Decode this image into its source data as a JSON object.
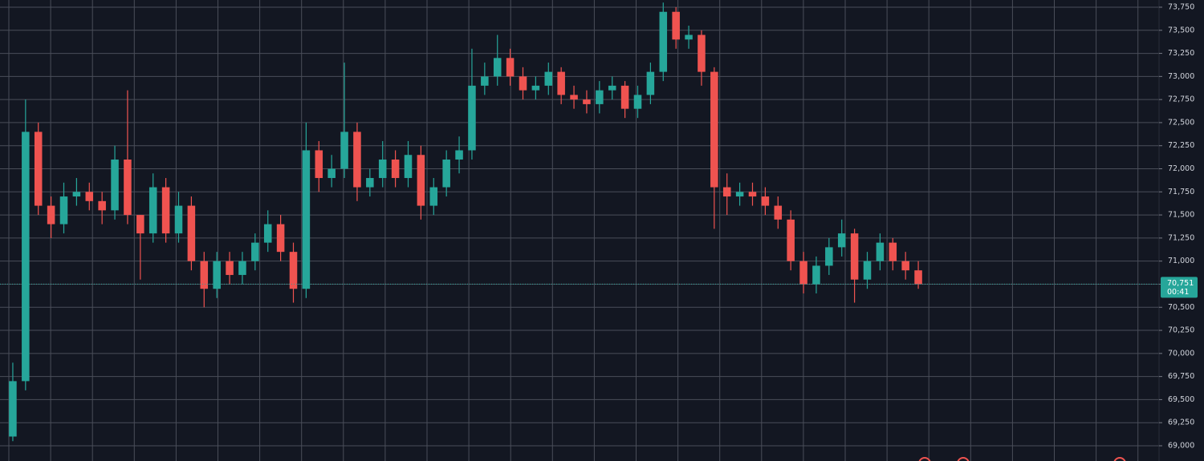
{
  "chart_data": {
    "type": "candlestick",
    "open": [
      69100,
      69700,
      72400,
      71600,
      71400,
      71700,
      71750,
      71650,
      71550,
      72100,
      71500,
      71300,
      71800,
      71300,
      71600,
      71000,
      70700,
      71000,
      70850,
      71000,
      71200,
      71400,
      71100,
      70700,
      72200,
      71900,
      72000,
      72400,
      71800,
      71900,
      72100,
      71900,
      72150,
      71600,
      71800,
      72100,
      72200,
      72900,
      73000,
      73200,
      73000,
      72850,
      72900,
      73050,
      72800,
      72750,
      72700,
      72850,
      72900,
      72650,
      72800,
      73050,
      73700,
      73400,
      73450,
      73050,
      71800,
      71700,
      71750,
      71700,
      71600,
      71450,
      71000,
      70750,
      70950,
      71150,
      71300,
      70800,
      71000,
      71200,
      71000,
      70900
    ],
    "high": [
      69900,
      72750,
      72500,
      71700,
      71850,
      71900,
      71850,
      71750,
      72250,
      72850,
      71500,
      71950,
      71900,
      71750,
      71700,
      71100,
      71100,
      71100,
      71100,
      71300,
      71550,
      71500,
      71200,
      72500,
      72300,
      72150,
      73150,
      72500,
      72000,
      72300,
      72200,
      72300,
      72250,
      71900,
      72200,
      72350,
      73300,
      73150,
      73450,
      73300,
      73100,
      73000,
      73150,
      73100,
      72900,
      72850,
      72950,
      73000,
      72950,
      72900,
      73150,
      73800,
      73750,
      73550,
      73500,
      73100,
      71950,
      71850,
      71850,
      71800,
      71700,
      71550,
      71100,
      71050,
      71250,
      71450,
      71350,
      71100,
      71300,
      71250,
      71100,
      71000
    ],
    "low": [
      69050,
      69600,
      71500,
      71250,
      71300,
      71600,
      71550,
      71400,
      71450,
      71400,
      70800,
      71200,
      71200,
      71200,
      70900,
      70500,
      70600,
      70750,
      70750,
      70900,
      71100,
      71000,
      70550,
      70600,
      71750,
      71800,
      71900,
      71650,
      71700,
      71800,
      71800,
      71800,
      71450,
      71500,
      71700,
      71950,
      72100,
      72800,
      72900,
      72900,
      72750,
      72750,
      72800,
      72700,
      72650,
      72600,
      72600,
      72750,
      72550,
      72550,
      72700,
      72950,
      73300,
      73300,
      72900,
      71350,
      71500,
      71600,
      71600,
      71500,
      71350,
      70900,
      70650,
      70650,
      70850,
      71050,
      70550,
      70700,
      70900,
      70900,
      70800,
      70700
    ],
    "close": [
      69700,
      72400,
      71600,
      71400,
      71700,
      71750,
      71650,
      71550,
      72100,
      71500,
      71300,
      71800,
      71300,
      71600,
      71000,
      70700,
      71000,
      70850,
      71000,
      71200,
      71400,
      71100,
      70700,
      72200,
      71900,
      72000,
      72400,
      71800,
      71900,
      72100,
      71900,
      72150,
      71600,
      71800,
      72100,
      72200,
      72900,
      73000,
      73200,
      73000,
      72850,
      72900,
      73050,
      72800,
      72750,
      72700,
      72850,
      72900,
      72650,
      72800,
      73050,
      73700,
      73400,
      73450,
      73050,
      71800,
      71700,
      71750,
      71700,
      71600,
      71450,
      71000,
      70750,
      70950,
      71150,
      71300,
      70800,
      71000,
      71200,
      71000,
      70900,
      70751
    ],
    "up_color": "#26a69a",
    "down_color": "#ef5350",
    "ylim": [
      68835,
      73828
    ],
    "yticks": [
      {
        "value": 69000,
        "label": "69,000"
      },
      {
        "value": 69250,
        "label": "69,250"
      },
      {
        "value": 69500,
        "label": "69,500"
      },
      {
        "value": 69750,
        "label": "69,750"
      },
      {
        "value": 70000,
        "label": "70,000"
      },
      {
        "value": 70250,
        "label": "70,250"
      },
      {
        "value": 70500,
        "label": "70,500"
      },
      {
        "value": 70750,
        "label": "70,750"
      },
      {
        "value": 71000,
        "label": "71,000"
      },
      {
        "value": 71250,
        "label": "71,250"
      },
      {
        "value": 71500,
        "label": "71,500"
      },
      {
        "value": 71750,
        "label": "71,750"
      },
      {
        "value": 72000,
        "label": "72,000"
      },
      {
        "value": 72250,
        "label": "72,250"
      },
      {
        "value": 72500,
        "label": "72,500"
      },
      {
        "value": 72750,
        "label": "72,750"
      },
      {
        "value": 73000,
        "label": "73,000"
      },
      {
        "value": 73250,
        "label": "73,250"
      },
      {
        "value": 73500,
        "label": "73,500"
      },
      {
        "value": 73750,
        "label": "73,750"
      }
    ],
    "grid": true,
    "last_price": {
      "value": 70751,
      "label": "70,751"
    },
    "countdown": "00:41"
  }
}
